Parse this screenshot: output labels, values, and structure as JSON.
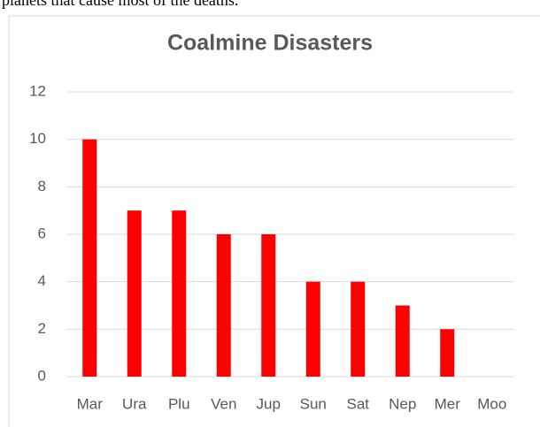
{
  "caption": "planets that cause most of the deaths.",
  "chart_data": {
    "type": "bar",
    "title": "Coalmine Disasters",
    "categories": [
      "Mar",
      "Ura",
      "Plu",
      "Ven",
      "Jup",
      "Sun",
      "Sat",
      "Nep",
      "Mer",
      "Moo"
    ],
    "values": [
      10,
      7,
      7,
      6,
      6,
      4,
      4,
      3,
      2,
      0
    ],
    "color": "#ff0000",
    "ylim": [
      0,
      12
    ],
    "yticks": [
      0,
      2,
      4,
      6,
      8,
      10,
      12
    ],
    "grid": true
  }
}
